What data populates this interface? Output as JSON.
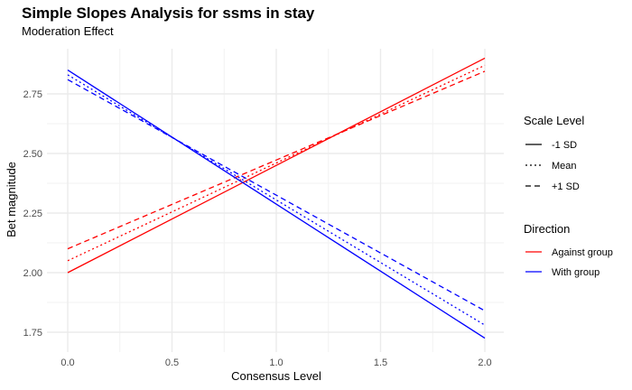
{
  "chart_data": {
    "type": "line",
    "title": "Simple Slopes Analysis for ssms in stay",
    "subtitle": "Moderation Effect",
    "xlabel": "Consensus Level",
    "ylabel": "Bet magnitude",
    "xlim": [
      0,
      2
    ],
    "ylim": [
      1.7,
      2.92
    ],
    "xticks": [
      0.0,
      0.5,
      1.0,
      1.5,
      2.0
    ],
    "xtick_labels": [
      "0.0",
      "0.5",
      "1.0",
      "1.5",
      "2.0"
    ],
    "yticks": [
      1.75,
      2.0,
      2.25,
      2.5,
      2.75
    ],
    "ytick_labels": [
      "1.75",
      "2.00",
      "2.25",
      "2.50",
      "2.75"
    ],
    "grid": true,
    "legend": {
      "placement": "right",
      "linetype_title": "Scale Level",
      "linetype_entries": [
        {
          "label": "-1 SD",
          "dash": "solid"
        },
        {
          "label": "Mean",
          "dash": "dotted"
        },
        {
          "label": "+1 SD",
          "dash": "dashed"
        }
      ],
      "color_title": "Direction",
      "color_entries": [
        {
          "label": "Against group",
          "color": "#ff0000"
        },
        {
          "label": "With group",
          "color": "#0000ff"
        }
      ]
    },
    "series": [
      {
        "direction": "Against group",
        "scale": "-1 SD",
        "color": "#ff0000",
        "dash": "solid",
        "x": [
          0,
          2
        ],
        "y": [
          2.0,
          2.9
        ]
      },
      {
        "direction": "Against group",
        "scale": "Mean",
        "color": "#ff0000",
        "dash": "dotted",
        "x": [
          0,
          2
        ],
        "y": [
          2.05,
          2.87
        ]
      },
      {
        "direction": "Against group",
        "scale": "+1 SD",
        "color": "#ff0000",
        "dash": "dashed",
        "x": [
          0,
          2
        ],
        "y": [
          2.1,
          2.845
        ]
      },
      {
        "direction": "With group",
        "scale": "-1 SD",
        "color": "#0000ff",
        "dash": "solid",
        "x": [
          0,
          2
        ],
        "y": [
          2.85,
          1.725
        ]
      },
      {
        "direction": "With group",
        "scale": "Mean",
        "color": "#0000ff",
        "dash": "dotted",
        "x": [
          0,
          2
        ],
        "y": [
          2.83,
          1.78
        ]
      },
      {
        "direction": "With group",
        "scale": "+1 SD",
        "color": "#0000ff",
        "dash": "dashed",
        "x": [
          0,
          2
        ],
        "y": [
          2.81,
          1.84
        ]
      }
    ]
  }
}
